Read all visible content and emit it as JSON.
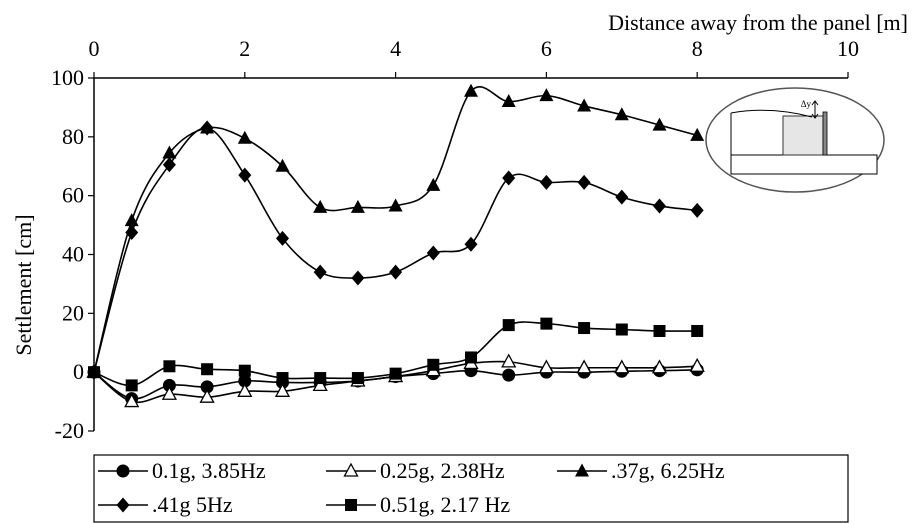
{
  "chart_data": {
    "type": "line",
    "title": "",
    "xlabel": "Distance away from the panel [m]",
    "ylabel": "Settlement [cm]",
    "xlim": [
      0,
      10
    ],
    "ylim": [
      -20,
      100
    ],
    "x_ticks": [
      0,
      2,
      4,
      6,
      8,
      10
    ],
    "y_ticks": [
      -20,
      0,
      20,
      40,
      60,
      80,
      100
    ],
    "x_axis_position": "top",
    "grid": false,
    "legend_position": "bottom",
    "inset_label": "Δy",
    "series": [
      {
        "name": "0.1g, 3.85Hz",
        "marker": "circle",
        "x": [
          0,
          0.5,
          1,
          1.5,
          2,
          2.5,
          3,
          3.5,
          4,
          4.5,
          5,
          5.5,
          6,
          6.5,
          7,
          7.5,
          8
        ],
        "y": [
          0,
          -9,
          -4.5,
          -5,
          -3,
          -3.5,
          -3.5,
          -3,
          -1.5,
          -0.5,
          0.5,
          -1,
          0,
          0,
          0.3,
          0.5,
          0.8
        ]
      },
      {
        "name": "0.25g, 2.38Hz",
        "marker": "triangle-open",
        "x": [
          0,
          0.5,
          1,
          1.5,
          2,
          2.5,
          3,
          3.5,
          4,
          4.5,
          5,
          5.5,
          6,
          6.5,
          7,
          7.5,
          8
        ],
        "y": [
          0,
          -10,
          -7.5,
          -8.5,
          -6.5,
          -6.5,
          -4.5,
          -3,
          -1.5,
          0.5,
          3,
          3.5,
          1.5,
          1.5,
          1.5,
          1.5,
          2
        ]
      },
      {
        "name": ".37g, 6.25Hz",
        "marker": "triangle",
        "x": [
          0,
          0.5,
          1,
          1.5,
          2,
          2.5,
          3,
          3.5,
          4,
          4.5,
          5,
          5.5,
          6,
          6.5,
          7,
          7.5,
          8
        ],
        "y": [
          0,
          51.5,
          74.5,
          83,
          79.5,
          70,
          56,
          56,
          56.5,
          63.5,
          95.5,
          92,
          94,
          90.5,
          87.5,
          84,
          80.5
        ]
      },
      {
        "name": ".41g 5Hz",
        "marker": "diamond",
        "x": [
          0,
          0.5,
          1,
          1.5,
          2,
          2.5,
          3,
          3.5,
          4,
          4.5,
          5,
          5.5,
          6,
          6.5,
          7,
          7.5,
          8
        ],
        "y": [
          0,
          47.5,
          70.5,
          83,
          67,
          45.5,
          34,
          32,
          34,
          40.5,
          43.5,
          66,
          64.5,
          64.5,
          59.5,
          56.5,
          55
        ]
      },
      {
        "name": "0.51g, 2.17 Hz",
        "marker": "square",
        "x": [
          0,
          0.5,
          1,
          1.5,
          2,
          2.5,
          3,
          3.5,
          4,
          4.5,
          5,
          5.5,
          6,
          6.5,
          7,
          7.5,
          8
        ],
        "y": [
          0,
          -4.5,
          2,
          1,
          0.5,
          -2,
          -2,
          -2,
          -0.5,
          2.5,
          5,
          16,
          16.5,
          15,
          14.5,
          14,
          14
        ]
      }
    ]
  }
}
